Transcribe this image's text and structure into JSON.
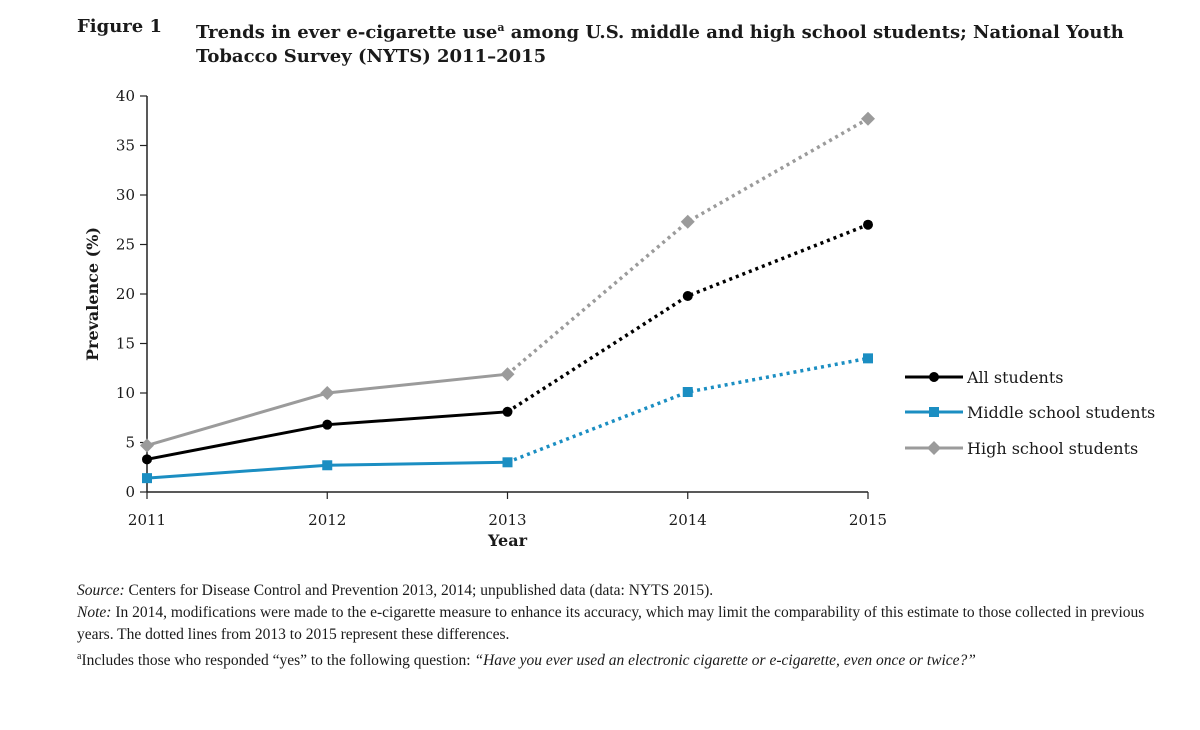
{
  "figure": {
    "label": "Figure 1",
    "title_part1": "Trends in ever e-cigarette use",
    "title_sup": "a",
    "title_part2": " among U.S. middle and high school students; National Youth Tobacco Survey (NYTS) 2011–2015"
  },
  "chart_data": {
    "type": "line",
    "title": "Trends in ever e-cigarette use among U.S. middle and high school students; National Youth Tobacco Survey (NYTS) 2011–2015",
    "xlabel": "Year",
    "ylabel": "Prevalence (%)",
    "x": [
      "2011",
      "2012",
      "2013",
      "2014",
      "2015"
    ],
    "ylim": [
      0,
      40
    ],
    "yticks": [
      0,
      5,
      10,
      15,
      20,
      25,
      30,
      35,
      40
    ],
    "grid": false,
    "legend_position": "right",
    "dotted_from_index": 2,
    "series": [
      {
        "name": "All students",
        "values": [
          3.3,
          6.8,
          8.1,
          19.8,
          27.0
        ],
        "color": "#000000",
        "marker": "circle"
      },
      {
        "name": "Middle school students",
        "values": [
          1.4,
          2.7,
          3.0,
          10.1,
          13.5
        ],
        "color": "#1b8ec2",
        "marker": "square"
      },
      {
        "name": "High school students",
        "values": [
          4.7,
          10.0,
          11.9,
          27.3,
          37.7
        ],
        "color": "#9b9b9b",
        "marker": "diamond"
      }
    ]
  },
  "notes": {
    "source_label": "Source:",
    "source_text": " Centers for Disease Control and Prevention 2013, 2014; unpublished data (data: NYTS 2015).",
    "note_label": "Note:",
    "note_text": " In 2014, modifications were made to the e-cigarette measure to enhance its accuracy, which may limit the comparability of this estimate to those collected in previous years. The dotted lines from 2013 to 2015 represent these differences.",
    "footnote_sup": "a",
    "footnote_text": "Includes those who responded “yes” to the following question: ",
    "footnote_question": "“Have you ever used an electronic cigarette or e-cigarette, even once or twice?”"
  }
}
